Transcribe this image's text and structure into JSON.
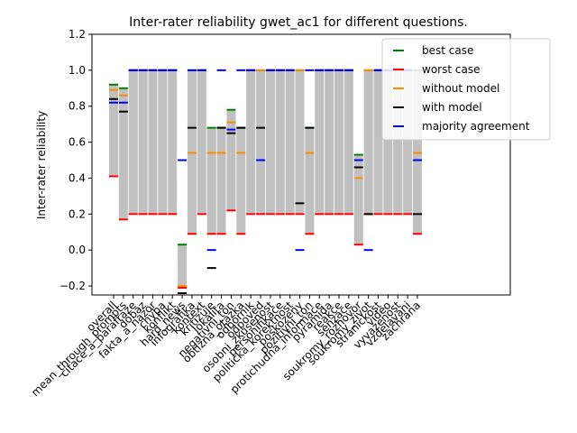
{
  "chart_data": {
    "type": "bar",
    "title": "Inter-rater reliability gwet_ac1 for different questions.",
    "xlabel": "",
    "ylabel": "Inter-rater reliability",
    "ylim": [
      -0.25,
      1.2
    ],
    "yticks": [
      "−0.2",
      "0.0",
      "0.2",
      "0.4",
      "0.6",
      "0.8",
      "1.0",
      "1.2"
    ],
    "ytick_values": [
      -0.2,
      0.0,
      0.2,
      0.4,
      0.6,
      0.8,
      1.0,
      1.2
    ],
    "legend_position": "top-right",
    "categories": [
      "overall",
      "mean_through_prompts",
      "citace_a_parafraze",
      "dobaz",
      "fakta_a_nazor",
      "chyba",
      "konflikt",
      "hard_news",
      "infografika",
      "kontext",
      "kritizuje",
      "lokalita",
      "negativni_ton",
      "obtizna_otazka",
      "odbornik",
      "odpoved",
      "osobni_zkusenost",
      "personifikace",
      "politicka_korektnost",
      "poskozeny",
      "pozitivni_ton",
      "protichudna_informace",
      "pyramida",
      "reakce",
      "senzace",
      "soukromy_rozhovor",
      "soukromy_zivot",
      "stranickost",
      "video",
      "vyvazenost",
      "vzdelavani",
      "zachrana"
    ],
    "series": [
      {
        "name": "best case",
        "color": "#008000",
        "values": [
          0.92,
          0.9,
          1.0,
          1.0,
          1.0,
          1.0,
          1.0,
          0.03,
          1.0,
          1.0,
          0.68,
          0.68,
          0.78,
          0.68,
          1.0,
          1.0,
          1.0,
          1.0,
          1.0,
          1.0,
          0.68,
          1.0,
          1.0,
          1.0,
          1.0,
          0.53,
          1.0,
          1.0,
          1.0,
          1.0,
          1.0,
          1.0
        ]
      },
      {
        "name": "worst case",
        "color": "#ff0000",
        "values": [
          0.41,
          0.17,
          0.2,
          0.2,
          0.2,
          0.2,
          0.2,
          -0.21,
          0.09,
          0.2,
          0.09,
          0.09,
          0.22,
          0.09,
          0.2,
          0.2,
          0.2,
          0.2,
          0.2,
          0.2,
          0.09,
          0.2,
          0.2,
          0.2,
          0.2,
          0.03,
          0.2,
          0.2,
          0.2,
          0.2,
          0.2,
          0.09
        ]
      },
      {
        "name": "without model",
        "color": "#ff8c00",
        "values": [
          0.89,
          0.86,
          1.0,
          1.0,
          1.0,
          1.0,
          1.0,
          -0.2,
          0.54,
          1.0,
          0.54,
          0.54,
          0.71,
          0.54,
          1.0,
          1.0,
          1.0,
          1.0,
          1.0,
          1.0,
          0.54,
          1.0,
          1.0,
          1.0,
          1.0,
          0.4,
          1.0,
          1.0,
          1.0,
          1.0,
          1.0,
          0.54
        ]
      },
      {
        "name": "with model",
        "color": "#000000",
        "values": [
          0.84,
          0.77,
          1.0,
          1.0,
          1.0,
          1.0,
          1.0,
          -0.24,
          0.68,
          1.0,
          -0.1,
          0.68,
          0.65,
          0.68,
          1.0,
          0.68,
          1.0,
          1.0,
          1.0,
          0.26,
          0.68,
          1.0,
          1.0,
          1.0,
          1.0,
          0.46,
          0.2,
          1.0,
          1.0,
          1.0,
          1.0,
          0.2
        ]
      },
      {
        "name": "majority agreement",
        "color": "#0000ff",
        "values": [
          0.82,
          0.82,
          1.0,
          1.0,
          1.0,
          1.0,
          1.0,
          0.5,
          1.0,
          1.0,
          0.0,
          1.0,
          0.67,
          1.0,
          1.0,
          0.5,
          1.0,
          1.0,
          1.0,
          0.0,
          1.0,
          1.0,
          1.0,
          1.0,
          1.0,
          0.5,
          0.0,
          1.0,
          1.0,
          1.0,
          1.0,
          0.5
        ]
      }
    ]
  }
}
